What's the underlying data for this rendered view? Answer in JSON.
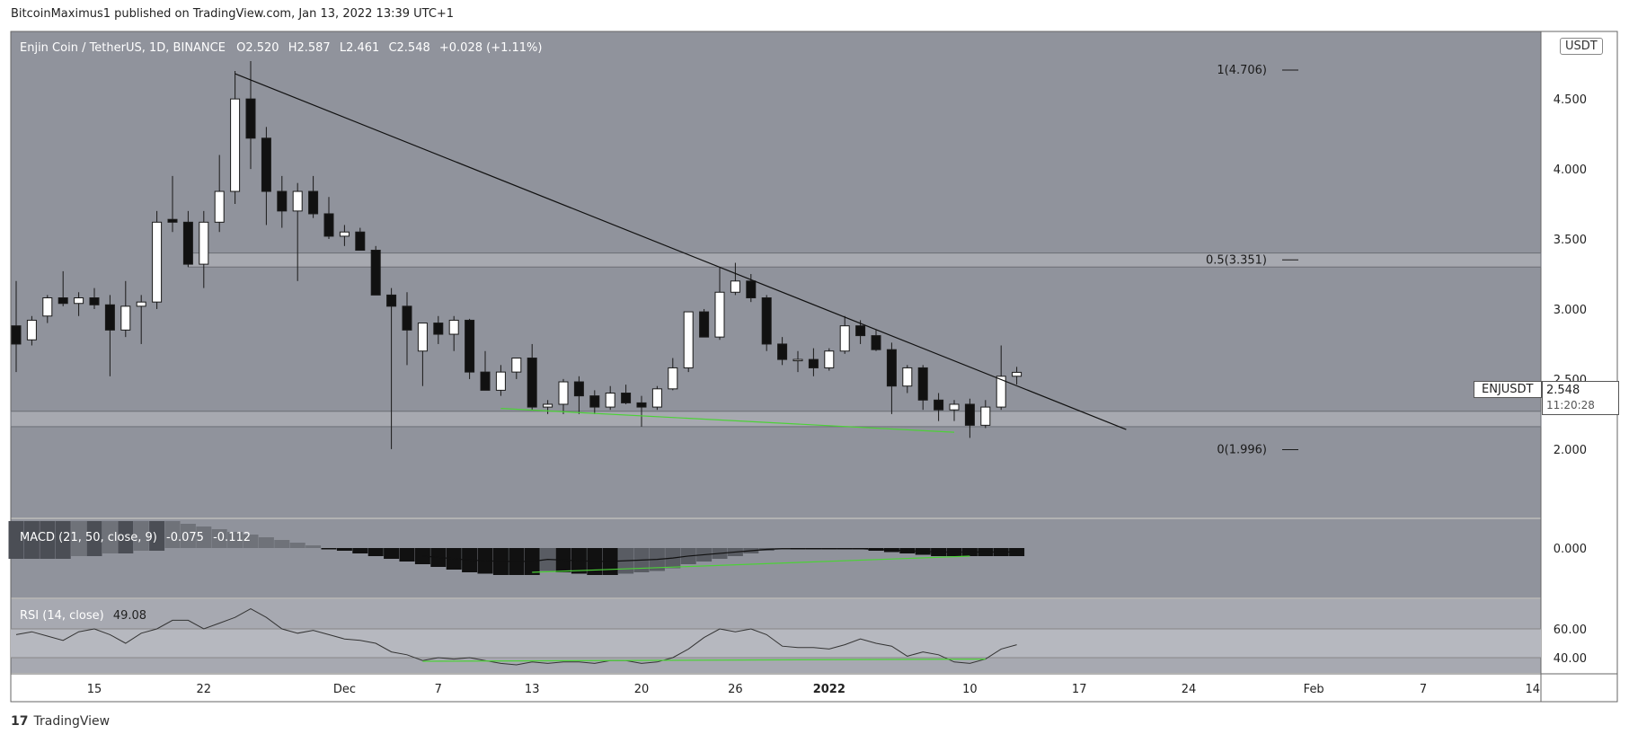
{
  "header": {
    "publisher_text": "BitcoinMaximus1 published on TradingView.com, Jan 13, 2022 13:39 UTC+1"
  },
  "footer": {
    "brand": "TradingView"
  },
  "main_legend": {
    "symbol": "Enjin Coin / TetherUS, 1D, BINANCE",
    "open_label": "O",
    "open": "2.520",
    "high_label": "H",
    "high": "2.587",
    "low_label": "L",
    "low": "2.461",
    "close_label": "C",
    "close": "2.548",
    "change": "+0.028 (+1.11%)"
  },
  "currency_badge": "USDT",
  "price_tag": {
    "symbol": "ENJUSDT",
    "price": "2.548",
    "countdown": "11:20:28"
  },
  "colors": {
    "panel_bg": "#90939c",
    "rsi_bg": "#a7a9b1",
    "rsi_band": "#b6b8bf",
    "up_candle": "#ffffff",
    "down_candle": "#111111",
    "support_line": "#4cd137",
    "zone_fill": "#b9bbc1"
  },
  "chart_data": {
    "type": "candlestick",
    "symbol": "Enjin Coin / TetherUS",
    "timeframe": "1D",
    "y_ticks": [
      4.5,
      4.0,
      3.5,
      3.0,
      2.5,
      2.0
    ],
    "y_tick_labels": [
      "4.500",
      "4.000",
      "3.500",
      "3.000",
      "2.500",
      "2.000"
    ],
    "ylim": [
      1.55,
      4.95
    ],
    "x_tick_labels": [
      "15",
      "22",
      "Dec",
      "7",
      "13",
      "20",
      "26",
      "2022",
      "10",
      "17",
      "24",
      "Feb",
      "7",
      "14"
    ],
    "x_tick_day_index": [
      5,
      12,
      21,
      27,
      33,
      40,
      46,
      52,
      61,
      68,
      75,
      83,
      90,
      97
    ],
    "candles": [
      {
        "o": 2.88,
        "h": 3.2,
        "l": 2.55,
        "c": 2.75
      },
      {
        "o": 2.78,
        "h": 2.95,
        "l": 2.74,
        "c": 2.92
      },
      {
        "o": 2.95,
        "h": 3.1,
        "l": 2.9,
        "c": 3.08
      },
      {
        "o": 3.08,
        "h": 3.27,
        "l": 3.02,
        "c": 3.04
      },
      {
        "o": 3.04,
        "h": 3.12,
        "l": 2.95,
        "c": 3.08
      },
      {
        "o": 3.08,
        "h": 3.15,
        "l": 3.0,
        "c": 3.03
      },
      {
        "o": 3.03,
        "h": 3.1,
        "l": 2.52,
        "c": 2.85
      },
      {
        "o": 2.85,
        "h": 3.2,
        "l": 2.8,
        "c": 3.02
      },
      {
        "o": 3.02,
        "h": 3.1,
        "l": 2.75,
        "c": 3.05
      },
      {
        "o": 3.05,
        "h": 3.7,
        "l": 3.0,
        "c": 3.62
      },
      {
        "o": 3.64,
        "h": 3.95,
        "l": 3.55,
        "c": 3.62
      },
      {
        "o": 3.62,
        "h": 3.7,
        "l": 3.3,
        "c": 3.32
      },
      {
        "o": 3.32,
        "h": 3.7,
        "l": 3.15,
        "c": 3.62
      },
      {
        "o": 3.62,
        "h": 4.1,
        "l": 3.55,
        "c": 3.84
      },
      {
        "o": 3.84,
        "h": 4.7,
        "l": 3.75,
        "c": 4.5
      },
      {
        "o": 4.5,
        "h": 4.77,
        "l": 4.0,
        "c": 4.22
      },
      {
        "o": 4.22,
        "h": 4.3,
        "l": 3.6,
        "c": 3.84
      },
      {
        "o": 3.84,
        "h": 3.95,
        "l": 3.58,
        "c": 3.7
      },
      {
        "o": 3.7,
        "h": 3.9,
        "l": 3.2,
        "c": 3.84
      },
      {
        "o": 3.84,
        "h": 3.95,
        "l": 3.65,
        "c": 3.68
      },
      {
        "o": 3.68,
        "h": 3.8,
        "l": 3.5,
        "c": 3.52
      },
      {
        "o": 3.52,
        "h": 3.6,
        "l": 3.45,
        "c": 3.55
      },
      {
        "o": 3.55,
        "h": 3.58,
        "l": 3.42,
        "c": 3.42
      },
      {
        "o": 3.42,
        "h": 3.45,
        "l": 3.1,
        "c": 3.1
      },
      {
        "o": 3.1,
        "h": 3.15,
        "l": 2.0,
        "c": 3.02
      },
      {
        "o": 3.02,
        "h": 3.12,
        "l": 2.6,
        "c": 2.85
      },
      {
        "o": 2.7,
        "h": 2.9,
        "l": 2.45,
        "c": 2.9
      },
      {
        "o": 2.9,
        "h": 2.95,
        "l": 2.75,
        "c": 2.82
      },
      {
        "o": 2.82,
        "h": 2.95,
        "l": 2.7,
        "c": 2.92
      },
      {
        "o": 2.92,
        "h": 2.93,
        "l": 2.5,
        "c": 2.55
      },
      {
        "o": 2.55,
        "h": 2.7,
        "l": 2.42,
        "c": 2.42
      },
      {
        "o": 2.42,
        "h": 2.6,
        "l": 2.38,
        "c": 2.55
      },
      {
        "o": 2.55,
        "h": 2.65,
        "l": 2.5,
        "c": 2.65
      },
      {
        "o": 2.65,
        "h": 2.75,
        "l": 2.28,
        "c": 2.3
      },
      {
        "o": 2.3,
        "h": 2.35,
        "l": 2.25,
        "c": 2.32
      },
      {
        "o": 2.32,
        "h": 2.5,
        "l": 2.25,
        "c": 2.48
      },
      {
        "o": 2.48,
        "h": 2.52,
        "l": 2.25,
        "c": 2.38
      },
      {
        "o": 2.38,
        "h": 2.42,
        "l": 2.25,
        "c": 2.3
      },
      {
        "o": 2.3,
        "h": 2.45,
        "l": 2.28,
        "c": 2.4
      },
      {
        "o": 2.4,
        "h": 2.46,
        "l": 2.32,
        "c": 2.33
      },
      {
        "o": 2.33,
        "h": 2.38,
        "l": 2.16,
        "c": 2.3
      },
      {
        "o": 2.3,
        "h": 2.45,
        "l": 2.28,
        "c": 2.43
      },
      {
        "o": 2.43,
        "h": 2.65,
        "l": 2.42,
        "c": 2.58
      },
      {
        "o": 2.58,
        "h": 2.98,
        "l": 2.55,
        "c": 2.98
      },
      {
        "o": 2.98,
        "h": 3.0,
        "l": 2.8,
        "c": 2.8
      },
      {
        "o": 2.8,
        "h": 3.3,
        "l": 2.78,
        "c": 3.12
      },
      {
        "o": 3.12,
        "h": 3.33,
        "l": 3.1,
        "c": 3.2
      },
      {
        "o": 3.2,
        "h": 3.25,
        "l": 3.05,
        "c": 3.08
      },
      {
        "o": 3.08,
        "h": 3.1,
        "l": 2.7,
        "c": 2.75
      },
      {
        "o": 2.75,
        "h": 2.8,
        "l": 2.6,
        "c": 2.64
      },
      {
        "o": 2.64,
        "h": 2.7,
        "l": 2.55,
        "c": 2.64
      },
      {
        "o": 2.64,
        "h": 2.72,
        "l": 2.52,
        "c": 2.58
      },
      {
        "o": 2.58,
        "h": 2.72,
        "l": 2.56,
        "c": 2.7
      },
      {
        "o": 2.7,
        "h": 2.95,
        "l": 2.68,
        "c": 2.88
      },
      {
        "o": 2.88,
        "h": 2.92,
        "l": 2.75,
        "c": 2.81
      },
      {
        "o": 2.81,
        "h": 2.85,
        "l": 2.7,
        "c": 2.71
      },
      {
        "o": 2.71,
        "h": 2.76,
        "l": 2.25,
        "c": 2.45
      },
      {
        "o": 2.45,
        "h": 2.6,
        "l": 2.4,
        "c": 2.58
      },
      {
        "o": 2.58,
        "h": 2.6,
        "l": 2.28,
        "c": 2.35
      },
      {
        "o": 2.35,
        "h": 2.4,
        "l": 2.2,
        "c": 2.28
      },
      {
        "o": 2.28,
        "h": 2.35,
        "l": 2.2,
        "c": 2.32
      },
      {
        "o": 2.32,
        "h": 2.36,
        "l": 2.08,
        "c": 2.17
      },
      {
        "o": 2.17,
        "h": 2.35,
        "l": 2.15,
        "c": 2.3
      },
      {
        "o": 2.3,
        "h": 2.74,
        "l": 2.28,
        "c": 2.52
      },
      {
        "o": 2.52,
        "h": 2.587,
        "l": 2.461,
        "c": 2.548
      }
    ],
    "descending_trendline": {
      "from": {
        "day": 14,
        "price": 4.68
      },
      "to": {
        "day": 71,
        "price": 2.14
      }
    },
    "support_zone": [
      2.16,
      2.27
    ],
    "resistance_zone": [
      3.3,
      3.4
    ],
    "fib_levels": [
      {
        "label": "1(4.706)",
        "price": 4.706
      },
      {
        "label": "0.5(3.351)",
        "price": 3.351
      },
      {
        "label": "0(1.996)",
        "price": 1.996
      }
    ],
    "price_support_trendline": [
      {
        "day": 31,
        "price": 2.29
      },
      {
        "day": 60,
        "price": 2.12
      }
    ],
    "macd": {
      "label": "MACD (21, 50, close, 9)",
      "values_shown": [
        "-0.075",
        "-0.112"
      ],
      "y_tick_labels": [
        "0.000"
      ],
      "histogram": [
        0.14,
        0.14,
        0.14,
        0.14,
        0.13,
        0.13,
        0.12,
        0.12,
        0.11,
        0.11,
        0.1,
        0.09,
        0.08,
        0.07,
        0.06,
        0.05,
        0.04,
        0.03,
        0.02,
        0.01,
        -0.005,
        -0.01,
        -0.02,
        -0.03,
        -0.04,
        -0.05,
        -0.06,
        -0.07,
        -0.08,
        -0.09,
        -0.095,
        -0.1,
        -0.1,
        -0.1,
        -0.085,
        -0.09,
        -0.095,
        -0.1,
        -0.1,
        -0.095,
        -0.09,
        -0.085,
        -0.075,
        -0.06,
        -0.05,
        -0.04,
        -0.03,
        -0.02,
        -0.01,
        -0.005,
        -0.005,
        -0.005,
        -0.005,
        -0.005,
        -0.005,
        -0.01,
        -0.015,
        -0.02,
        -0.025,
        -0.03,
        -0.03,
        -0.03,
        -0.03,
        -0.03,
        -0.03
      ],
      "signal_shown": true,
      "divergence_line_color": "#4cd137"
    },
    "rsi": {
      "label": "RSI (14, close)",
      "value": "49.08",
      "y_tick_labels": [
        "60.00",
        "40.00"
      ],
      "band": [
        40,
        60
      ],
      "values": [
        56,
        58,
        55,
        52,
        58,
        60,
        56,
        50,
        57,
        60,
        66,
        66,
        60,
        64,
        68,
        74,
        68,
        60,
        57,
        59,
        56,
        53,
        52,
        50,
        44,
        42,
        38,
        40,
        39,
        40,
        38,
        36,
        35,
        37,
        36,
        37,
        37,
        36,
        38,
        38,
        36,
        37,
        40,
        46,
        54,
        60,
        58,
        60,
        56,
        48,
        47,
        47,
        46,
        49,
        53,
        50,
        48,
        41,
        44,
        42,
        37,
        36,
        39,
        46,
        49
      ]
    },
    "grid": false,
    "legend": "top-left"
  }
}
